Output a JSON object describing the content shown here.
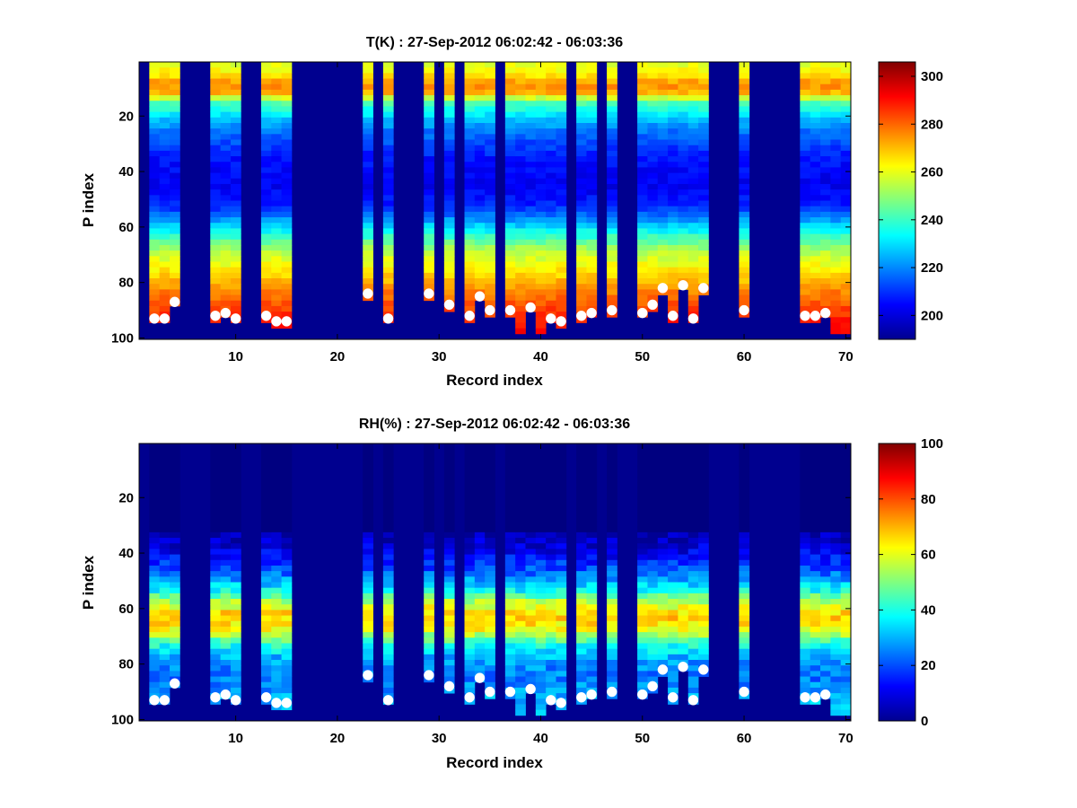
{
  "chart_data": [
    {
      "type": "heatmap",
      "title": "T(K) : 27-Sep-2012 06:02:42 - 06:03:36",
      "xlabel": "Record index",
      "ylabel": "P index",
      "xlim": [
        0.5,
        70.5
      ],
      "ylim": [
        100.5,
        0.5
      ],
      "xticks": [
        10,
        20,
        30,
        40,
        50,
        60,
        70
      ],
      "yticks": [
        20,
        40,
        60,
        80,
        100
      ],
      "colorbar": {
        "min": 190,
        "max": 306,
        "ticks": [
          200,
          220,
          240,
          260,
          280,
          300
        ]
      },
      "background_value": 190,
      "profile_records": [
        2,
        3,
        4,
        8,
        9,
        10,
        13,
        14,
        15,
        23,
        25,
        29,
        31,
        33,
        34,
        35,
        37,
        38,
        39,
        40,
        41,
        42,
        44,
        45,
        47,
        50,
        51,
        52,
        53,
        54,
        55,
        56,
        60,
        66,
        67,
        68,
        69,
        70
      ],
      "surface_markers": [
        {
          "record": 2,
          "p": 93
        },
        {
          "record": 3,
          "p": 93
        },
        {
          "record": 4,
          "p": 87
        },
        {
          "record": 8,
          "p": 92
        },
        {
          "record": 9,
          "p": 91
        },
        {
          "record": 10,
          "p": 93
        },
        {
          "record": 13,
          "p": 92
        },
        {
          "record": 14,
          "p": 94
        },
        {
          "record": 15,
          "p": 94
        },
        {
          "record": 23,
          "p": 84
        },
        {
          "record": 25,
          "p": 93
        },
        {
          "record": 29,
          "p": 84
        },
        {
          "record": 31,
          "p": 88
        },
        {
          "record": 33,
          "p": 92
        },
        {
          "record": 34,
          "p": 85
        },
        {
          "record": 35,
          "p": 90
        },
        {
          "record": 37,
          "p": 90
        },
        {
          "record": 39,
          "p": 89
        },
        {
          "record": 41,
          "p": 93
        },
        {
          "record": 42,
          "p": 94
        },
        {
          "record": 44,
          "p": 92
        },
        {
          "record": 45,
          "p": 91
        },
        {
          "record": 47,
          "p": 90
        },
        {
          "record": 50,
          "p": 91
        },
        {
          "record": 51,
          "p": 88
        },
        {
          "record": 52,
          "p": 82
        },
        {
          "record": 53,
          "p": 92
        },
        {
          "record": 54,
          "p": 81
        },
        {
          "record": 55,
          "p": 93
        },
        {
          "record": 56,
          "p": 82
        },
        {
          "record": 60,
          "p": 90
        },
        {
          "record": 66,
          "p": 92
        },
        {
          "record": 67,
          "p": 92
        },
        {
          "record": 68,
          "p": 91
        }
      ]
    },
    {
      "type": "heatmap",
      "title": "RH(%) : 27-Sep-2012 06:02:42 - 06:03:36",
      "xlabel": "Record index",
      "ylabel": "P index",
      "xlim": [
        0.5,
        70.5
      ],
      "ylim": [
        100.5,
        0.5
      ],
      "xticks": [
        10,
        20,
        30,
        40,
        50,
        60,
        70
      ],
      "yticks": [
        20,
        40,
        60,
        80,
        100
      ],
      "colorbar": {
        "min": 0,
        "max": 100,
        "ticks": [
          0,
          20,
          40,
          60,
          80,
          100
        ]
      },
      "background_value": 0,
      "profile_records": [
        2,
        3,
        4,
        8,
        9,
        10,
        13,
        14,
        15,
        23,
        25,
        29,
        31,
        33,
        34,
        35,
        37,
        38,
        39,
        40,
        41,
        42,
        44,
        45,
        47,
        50,
        51,
        52,
        53,
        54,
        55,
        56,
        60,
        66,
        67,
        68,
        69,
        70
      ],
      "surface_markers": [
        {
          "record": 2,
          "p": 93
        },
        {
          "record": 3,
          "p": 93
        },
        {
          "record": 4,
          "p": 87
        },
        {
          "record": 8,
          "p": 92
        },
        {
          "record": 9,
          "p": 91
        },
        {
          "record": 10,
          "p": 93
        },
        {
          "record": 13,
          "p": 92
        },
        {
          "record": 14,
          "p": 94
        },
        {
          "record": 15,
          "p": 94
        },
        {
          "record": 23,
          "p": 84
        },
        {
          "record": 25,
          "p": 93
        },
        {
          "record": 29,
          "p": 84
        },
        {
          "record": 31,
          "p": 88
        },
        {
          "record": 33,
          "p": 92
        },
        {
          "record": 34,
          "p": 85
        },
        {
          "record": 35,
          "p": 90
        },
        {
          "record": 37,
          "p": 90
        },
        {
          "record": 39,
          "p": 89
        },
        {
          "record": 41,
          "p": 93
        },
        {
          "record": 42,
          "p": 94
        },
        {
          "record": 44,
          "p": 92
        },
        {
          "record": 45,
          "p": 91
        },
        {
          "record": 47,
          "p": 90
        },
        {
          "record": 50,
          "p": 91
        },
        {
          "record": 51,
          "p": 88
        },
        {
          "record": 52,
          "p": 82
        },
        {
          "record": 53,
          "p": 92
        },
        {
          "record": 54,
          "p": 81
        },
        {
          "record": 55,
          "p": 93
        },
        {
          "record": 56,
          "p": 82
        },
        {
          "record": 60,
          "p": 90
        },
        {
          "record": 66,
          "p": 92
        },
        {
          "record": 67,
          "p": 92
        },
        {
          "record": 68,
          "p": 91
        }
      ]
    }
  ]
}
